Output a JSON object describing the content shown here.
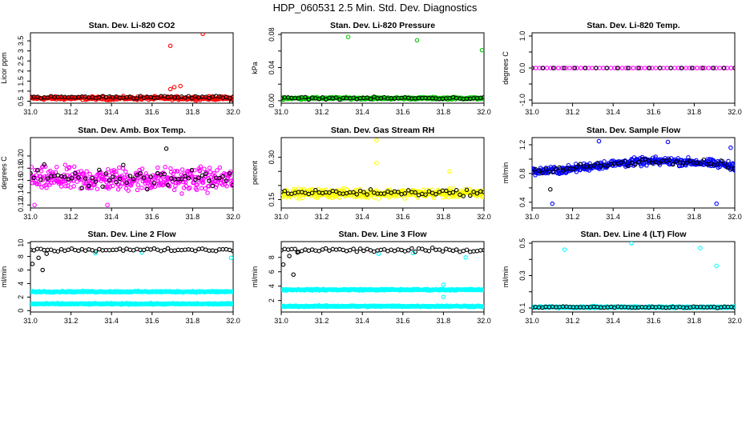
{
  "figure_title": "HDP_060531  2.5 Min. Std. Dev. Diagnostics",
  "chart_data": [
    {
      "type": "scatter",
      "title": "Stan. Dev. Li-820 CO2",
      "ylabel": "Licor ppm",
      "xlim": [
        31.0,
        32.0
      ],
      "ylim": [
        0.4,
        3.9
      ],
      "xticks": [
        31.0,
        31.2,
        31.4,
        31.6,
        31.8,
        32.0
      ],
      "xtick_labels": [
        "31.0",
        "31.2",
        "31.4",
        "31.6",
        "31.8",
        "32.0"
      ],
      "yticks": [
        0.5,
        1.0,
        1.5,
        2.0,
        2.5,
        3.0,
        3.5
      ],
      "ytick_labels": [
        "0.5",
        "1",
        "1.5",
        "2",
        "2.5",
        "3",
        "3.5"
      ],
      "series": [
        {
          "name": "colored",
          "color": "#ff0000",
          "n": 320,
          "base": 0.65,
          "spread": 0.12,
          "outliers": [
            [
              31.69,
              3.25
            ],
            [
              31.71,
              1.2
            ],
            [
              31.74,
              1.25
            ],
            [
              31.69,
              1.1
            ],
            [
              31.85,
              3.85
            ]
          ]
        },
        {
          "name": "black",
          "color": "#000000",
          "n": 60,
          "base": 0.7,
          "spread": 0.1,
          "outliers": [
            [
              31.99,
              0.45
            ]
          ]
        }
      ]
    },
    {
      "type": "scatter",
      "title": "Stan. Dev. Li-820 Pressure",
      "ylabel": "kPa",
      "xlim": [
        31.0,
        32.0
      ],
      "ylim": [
        -0.003,
        0.082
      ],
      "xticks": [
        31.0,
        31.2,
        31.4,
        31.6,
        31.8,
        32.0
      ],
      "xtick_labels": [
        "31.0",
        "31.2",
        "31.4",
        "31.6",
        "31.8",
        "32.0"
      ],
      "yticks": [
        0.0,
        0.02,
        0.04,
        0.06,
        0.08
      ],
      "ytick_labels": [
        "0.00",
        "",
        "0.04",
        "",
        "0.08"
      ],
      "series": [
        {
          "name": "colored",
          "color": "#00cc00",
          "n": 320,
          "base": 0.003,
          "spread": 0.002,
          "outliers": [
            [
              31.33,
              0.077
            ],
            [
              31.67,
              0.073
            ],
            [
              31.99,
              0.061
            ]
          ]
        },
        {
          "name": "black",
          "color": "#000000",
          "n": 60,
          "base": 0.003,
          "spread": 0.002,
          "outliers": []
        }
      ]
    },
    {
      "type": "scatter",
      "title": "Stan. Dev. Li-820 Temp.",
      "ylabel": "degrees C",
      "xlim": [
        31.0,
        32.0
      ],
      "ylim": [
        -1.1,
        1.1
      ],
      "xticks": [
        31.0,
        31.2,
        31.4,
        31.6,
        31.8,
        32.0
      ],
      "xtick_labels": [
        "31.0",
        "31.2",
        "31.4",
        "31.6",
        "31.8",
        "32.0"
      ],
      "yticks": [
        -1.0,
        -0.5,
        0.0,
        0.5,
        1.0
      ],
      "ytick_labels": [
        "-1.0",
        "",
        "0.0",
        "",
        "1.0"
      ],
      "series": [
        {
          "name": "colored",
          "color": "#ff00ff",
          "n": 55,
          "base": 0.0,
          "spread": 0.0,
          "outliers": []
        },
        {
          "name": "black",
          "color": "#000000",
          "n": 20,
          "base": 0.0,
          "spread": 0.0,
          "outliers": []
        }
      ]
    },
    {
      "type": "scatter",
      "title": "Stan. Dev. Amb. Box Temp.",
      "ylabel": "degrees C",
      "xlim": [
        31.0,
        32.0
      ],
      "ylim": [
        0.115,
        0.23
      ],
      "xticks": [
        31.0,
        31.2,
        31.4,
        31.6,
        31.8,
        32.0
      ],
      "xtick_labels": [
        "31.0",
        "31.2",
        "31.4",
        "31.6",
        "31.8",
        "32.0"
      ],
      "yticks": [
        0.12,
        0.14,
        0.16,
        0.18,
        0.2
      ],
      "ytick_labels": [
        "0.12",
        "0.14",
        "0.16",
        "0.18",
        "0.20"
      ],
      "series": [
        {
          "name": "colored",
          "color": "#ff00ff",
          "n": 380,
          "base": 0.162,
          "spread": 0.028,
          "outliers": [
            [
              31.38,
              0.12
            ],
            [
              31.02,
              0.12
            ]
          ]
        },
        {
          "name": "black",
          "color": "#000000",
          "n": 60,
          "base": 0.165,
          "spread": 0.025,
          "outliers": [
            [
              31.67,
              0.212
            ]
          ]
        }
      ]
    },
    {
      "type": "scatter",
      "title": "Stan. Dev. Gas Stream RH",
      "ylabel": "percent",
      "xlim": [
        31.0,
        32.0
      ],
      "ylim": [
        0.12,
        0.37
      ],
      "xticks": [
        31.0,
        31.2,
        31.4,
        31.6,
        31.8,
        32.0
      ],
      "xtick_labels": [
        "31.0",
        "31.2",
        "31.4",
        "31.6",
        "31.8",
        "32.0"
      ],
      "yticks": [
        0.15,
        0.2,
        0.25,
        0.3
      ],
      "ytick_labels": [
        "0.15",
        "",
        "",
        "0.30"
      ],
      "series": [
        {
          "name": "colored",
          "color": "#ffff00",
          "n": 380,
          "base": 0.172,
          "spread": 0.022,
          "outliers": [
            [
              31.47,
              0.36
            ],
            [
              31.47,
              0.28
            ],
            [
              31.83,
              0.25
            ]
          ]
        },
        {
          "name": "black",
          "color": "#000000",
          "n": 60,
          "base": 0.175,
          "spread": 0.015,
          "outliers": []
        }
      ]
    },
    {
      "type": "scatter",
      "title": "Stan. Dev. Sample Flow",
      "ylabel": "ml/min",
      "xlim": [
        31.0,
        32.0
      ],
      "ylim": [
        0.32,
        1.3
      ],
      "xticks": [
        31.0,
        31.2,
        31.4,
        31.6,
        31.8,
        32.0
      ],
      "xtick_labels": [
        "31.0",
        "31.2",
        "31.4",
        "31.6",
        "31.8",
        "32.0"
      ],
      "yticks": [
        0.4,
        0.6,
        0.8,
        1.0,
        1.2
      ],
      "ytick_labels": [
        "0.4",
        "",
        "0.8",
        "",
        "1.2"
      ],
      "series": [
        {
          "name": "colored",
          "color": "#0000ff",
          "n": 380,
          "base": 0.85,
          "spread": 0.08,
          "wave": 0.12,
          "outliers": [
            [
              31.33,
              1.25
            ],
            [
              31.67,
              1.24
            ],
            [
              31.1,
              0.38
            ],
            [
              31.91,
              0.38
            ],
            [
              31.98,
              1.16
            ]
          ]
        },
        {
          "name": "black",
          "color": "#000000",
          "n": 60,
          "base": 0.86,
          "spread": 0.07,
          "wave": 0.1,
          "outliers": [
            [
              31.09,
              0.58
            ]
          ]
        }
      ]
    },
    {
      "type": "scatter",
      "title": "Stan. Dev. Line 2 Flow",
      "ylabel": "ml/min",
      "xlim": [
        31.0,
        32.0
      ],
      "ylim": [
        -0.2,
        10.2
      ],
      "xticks": [
        31.0,
        31.2,
        31.4,
        31.6,
        31.8,
        32.0
      ],
      "xtick_labels": [
        "31.0",
        "31.2",
        "31.4",
        "31.6",
        "31.8",
        "32.0"
      ],
      "yticks": [
        0,
        2,
        4,
        6,
        8,
        10
      ],
      "ytick_labels": [
        "0",
        "2",
        "4",
        "6",
        "8",
        "10"
      ],
      "series": [
        {
          "name": "cyan-upper",
          "color": "#00ffff",
          "n": 300,
          "base": 2.8,
          "spread": 0.15,
          "outliers": []
        },
        {
          "name": "cyan-lower",
          "color": "#00ffff",
          "n": 300,
          "base": 1.0,
          "spread": 0.15,
          "outliers": [
            [
              31.32,
              8.5
            ],
            [
              31.55,
              8.6
            ],
            [
              31.99,
              7.8
            ]
          ]
        },
        {
          "name": "black",
          "color": "#000000",
          "n": 60,
          "base": 9.0,
          "spread": 0.3,
          "outliers": [
            [
              31.01,
              6.9
            ],
            [
              31.04,
              7.8
            ],
            [
              31.06,
              6.0
            ],
            [
              31.08,
              8.4
            ]
          ]
        }
      ]
    },
    {
      "type": "scatter",
      "title": "Stan. Dev. Line 3 Flow",
      "ylabel": "ml/min",
      "xlim": [
        31.0,
        32.0
      ],
      "ylim": [
        0.4,
        10.2
      ],
      "xticks": [
        31.0,
        31.2,
        31.4,
        31.6,
        31.8,
        32.0
      ],
      "xtick_labels": [
        "31.0",
        "31.2",
        "31.4",
        "31.6",
        "31.8",
        "32.0"
      ],
      "yticks": [
        2,
        4,
        6,
        8
      ],
      "ytick_labels": [
        "2",
        "4",
        "6",
        "8"
      ],
      "series": [
        {
          "name": "cyan-upper",
          "color": "#00ffff",
          "n": 300,
          "base": 3.5,
          "spread": 0.15,
          "outliers": [
            [
              31.8,
              4.2
            ],
            [
              31.8,
              2.5
            ]
          ]
        },
        {
          "name": "cyan-lower",
          "color": "#00ffff",
          "n": 300,
          "base": 1.2,
          "spread": 0.15,
          "outliers": [
            [
              31.48,
              8.5
            ],
            [
              31.65,
              8.6
            ],
            [
              31.91,
              8.0
            ]
          ]
        },
        {
          "name": "black",
          "color": "#000000",
          "n": 60,
          "base": 9.0,
          "spread": 0.4,
          "outliers": [
            [
              31.01,
              7.0
            ],
            [
              31.04,
              8.2
            ],
            [
              31.06,
              5.6
            ],
            [
              31.08,
              8.7
            ]
          ]
        }
      ]
    },
    {
      "type": "scatter",
      "title": "Stan. Dev. Line 4 (LT) Flow",
      "ylabel": "ml/min",
      "xlim": [
        31.0,
        32.0
      ],
      "ylim": [
        0.075,
        0.51
      ],
      "xticks": [
        31.0,
        31.2,
        31.4,
        31.6,
        31.8,
        32.0
      ],
      "xtick_labels": [
        "31.0",
        "31.2",
        "31.4",
        "31.6",
        "31.8",
        "32.0"
      ],
      "yticks": [
        0.1,
        0.2,
        0.3,
        0.4,
        0.5
      ],
      "ytick_labels": [
        "0.1",
        "",
        "0.3",
        "",
        "0.5"
      ],
      "series": [
        {
          "name": "colored",
          "color": "#00ffff",
          "n": 380,
          "base": 0.105,
          "spread": 0.008,
          "outliers": [
            [
              31.16,
              0.46
            ],
            [
              31.49,
              0.5
            ],
            [
              31.83,
              0.47
            ],
            [
              31.91,
              0.36
            ]
          ]
        },
        {
          "name": "black",
          "color": "#000000",
          "n": 60,
          "base": 0.105,
          "spread": 0.006,
          "outliers": []
        }
      ]
    }
  ]
}
